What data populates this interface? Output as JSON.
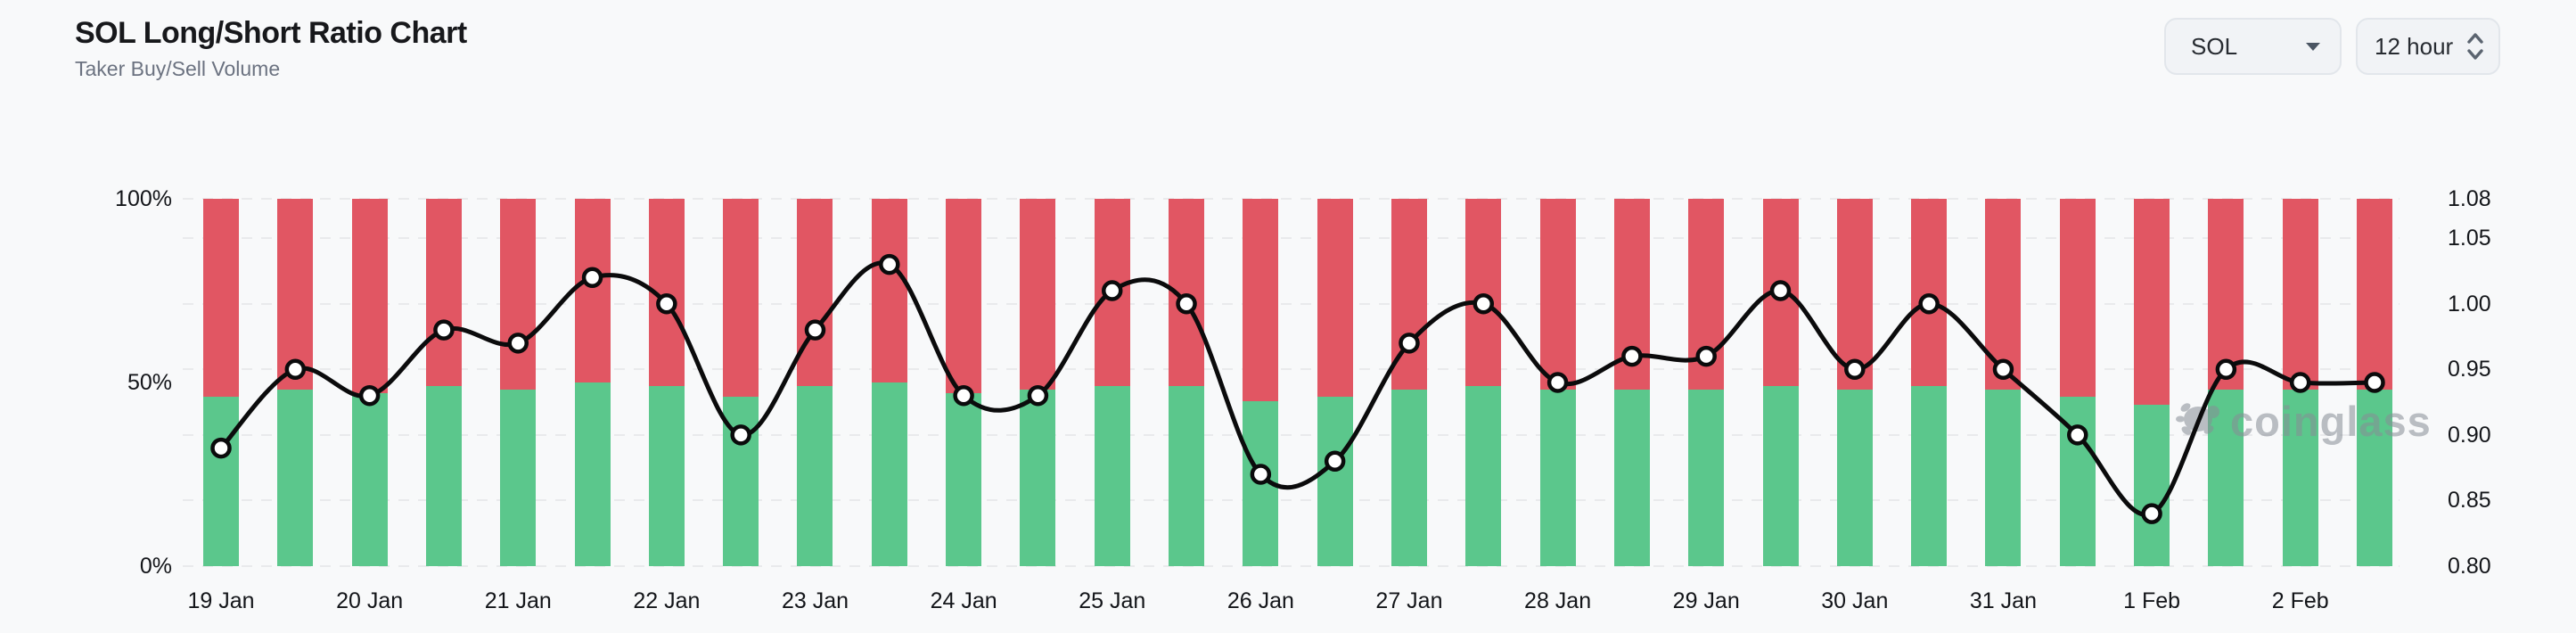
{
  "header": {
    "title": "SOL Long/Short Ratio Chart",
    "subtitle": "Taker Buy/Sell Volume"
  },
  "controls": {
    "symbol_select": {
      "value": "SOL"
    },
    "interval_select": {
      "value": "12 hour"
    }
  },
  "watermark": {
    "text": "coinglass"
  },
  "colors": {
    "buy_green": "#5bc78c",
    "sell_red": "#e15663",
    "line_black": "#0b0b0c",
    "marker_fill": "#ffffff",
    "grid": "#e9eaec",
    "background": "#f8f9fa",
    "text_primary": "#17181b",
    "text_secondary": "#6b7280",
    "watermark_gray": "#878d96"
  },
  "chart_data": {
    "type": "bar",
    "subtype": "stacked-percent-bars-with-line-overlay",
    "title": "SOL Long/Short Ratio Chart",
    "subtitle": "Taker Buy/Sell Volume",
    "interval": "12 hour",
    "bars_per_x_tick": 2,
    "grid": "horizontal-dashed",
    "legend_position": "none",
    "x_tick_labels": [
      "19 Jan",
      "20 Jan",
      "21 Jan",
      "22 Jan",
      "23 Jan",
      "24 Jan",
      "25 Jan",
      "26 Jan",
      "27 Jan",
      "28 Jan",
      "29 Jan",
      "30 Jan",
      "31 Jan",
      "1 Feb",
      "2 Feb"
    ],
    "left_axis": {
      "label_format": "percent",
      "ticks": [
        "100%",
        "50%",
        "0%"
      ],
      "tick_values": [
        100,
        50,
        0
      ],
      "range": [
        0,
        100
      ]
    },
    "right_axis": {
      "ticks": [
        "1.08",
        "1.05",
        "1.00",
        "0.95",
        "0.90",
        "0.85",
        "0.80"
      ],
      "range": [
        0.8,
        1.08
      ]
    },
    "series": [
      {
        "name": "Taker Buy Volume %",
        "type": "bar",
        "stack": true,
        "color": "#5bc78c",
        "values": [
          46,
          48,
          47,
          49,
          48,
          50,
          49,
          46,
          49,
          50,
          47,
          48,
          49,
          49,
          45,
          46,
          48,
          49,
          48,
          48,
          48,
          49,
          48,
          49,
          48,
          46,
          44,
          48,
          48,
          48
        ]
      },
      {
        "name": "Taker Sell Volume %",
        "type": "bar",
        "stack": true,
        "color": "#e15663",
        "values": [
          54,
          52,
          53,
          51,
          52,
          50,
          51,
          54,
          51,
          50,
          53,
          52,
          51,
          51,
          55,
          54,
          52,
          51,
          52,
          52,
          52,
          51,
          52,
          51,
          52,
          54,
          56,
          52,
          52,
          52
        ]
      },
      {
        "name": "Long/Short Ratio",
        "type": "line",
        "axis": "right",
        "color": "#0b0b0c",
        "marker": "circle",
        "values": [
          0.89,
          0.95,
          0.93,
          0.98,
          0.97,
          1.02,
          1.0,
          0.9,
          0.98,
          1.03,
          0.93,
          0.93,
          1.01,
          1.0,
          0.87,
          0.88,
          0.97,
          1.0,
          0.94,
          0.96,
          0.96,
          1.01,
          0.95,
          1.0,
          0.95,
          0.9,
          0.84,
          0.95,
          0.94,
          0.94
        ]
      }
    ]
  }
}
